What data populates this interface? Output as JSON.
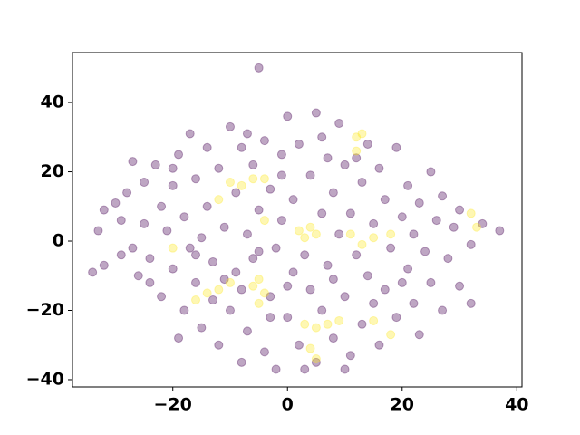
{
  "chart_data": {
    "type": "scatter",
    "xlim": [
      -37.5,
      40.9
    ],
    "ylim": [
      -42.1,
      54.4
    ],
    "xticks": [
      {
        "value": -20,
        "label": "−20"
      },
      0,
      20,
      40
    ],
    "yticks": [
      {
        "value": -40,
        "label": "−40"
      },
      {
        "value": -20,
        "label": "−20"
      },
      0,
      20,
      40
    ],
    "opacity": 0.35,
    "series": [
      {
        "color": "#440154",
        "x": [
          -34,
          -33,
          -32,
          -32,
          -30,
          -29,
          -28,
          -27,
          -27,
          -26,
          -25,
          -25,
          -24,
          -23,
          -22,
          -22,
          -21,
          -20,
          -20,
          -19,
          -19,
          -18,
          -18,
          -17,
          -17,
          -16,
          -16,
          -15,
          -15,
          -14,
          -14,
          -13,
          -12,
          -12,
          -11,
          -10,
          -10,
          -9,
          -9,
          -8,
          -8,
          -7,
          -7,
          -6,
          -6,
          -5,
          -5,
          -4,
          -4,
          -3,
          -3,
          -2,
          -2,
          -1,
          -1,
          0,
          0,
          1,
          1,
          2,
          2,
          3,
          4,
          4,
          5,
          5,
          6,
          6,
          7,
          7,
          8,
          8,
          9,
          9,
          10,
          10,
          11,
          11,
          12,
          13,
          13,
          14,
          14,
          15,
          16,
          16,
          17,
          17,
          18,
          19,
          19,
          20,
          21,
          21,
          22,
          22,
          23,
          23,
          24,
          25,
          25,
          26,
          27,
          27,
          28,
          29,
          30,
          30,
          32,
          32,
          34,
          37,
          -29,
          -24,
          -20,
          -13,
          -8,
          0,
          3,
          -5,
          -3,
          8,
          15,
          -11,
          -16,
          20,
          12,
          -1,
          6,
          -7,
          10
        ],
        "y": [
          -9,
          3,
          9,
          -7,
          11,
          6,
          14,
          23,
          -2,
          -10,
          17,
          5,
          -5,
          22,
          10,
          -16,
          3,
          16,
          -8,
          -28,
          25,
          7,
          -20,
          -2,
          31,
          18,
          -12,
          1,
          -25,
          27,
          10,
          -6,
          -30,
          21,
          4,
          -20,
          33,
          14,
          -9,
          -35,
          27,
          2,
          -26,
          22,
          -5,
          50,
          9,
          -32,
          29,
          -16,
          15,
          -2,
          -37,
          25,
          6,
          -22,
          36,
          12,
          -9,
          -30,
          28,
          -4,
          19,
          -14,
          37,
          -35,
          8,
          -20,
          24,
          -7,
          -28,
          14,
          34,
          2,
          -16,
          22,
          -33,
          8,
          -4,
          17,
          -24,
          -10,
          28,
          5,
          -30,
          21,
          -14,
          12,
          -2,
          -22,
          27,
          7,
          -8,
          16,
          -18,
          2,
          -27,
          11,
          -3,
          20,
          -12,
          6,
          -20,
          13,
          -5,
          4,
          -13,
          9,
          -1,
          -18,
          5,
          3,
          -4,
          -12,
          21,
          -17,
          -14,
          -13,
          -37,
          -3,
          -22,
          -11,
          -18,
          -11,
          -4,
          -12,
          24,
          19,
          30,
          31,
          -37
        ]
      },
      {
        "color": "#fde725",
        "x": [
          -12,
          -10,
          -8,
          -6,
          -4,
          2,
          3,
          4,
          5,
          11,
          13,
          15,
          -6,
          -5,
          -4,
          -5,
          -14,
          -12,
          -16,
          -10,
          3,
          5,
          7,
          9,
          4,
          5,
          12,
          13,
          12,
          18,
          33,
          32,
          -4,
          -20,
          15,
          18
        ],
        "y": [
          12,
          17,
          16,
          18,
          18,
          3,
          1,
          4,
          2,
          2,
          -1,
          1,
          -13,
          -11,
          -15,
          -18,
          -15,
          -14,
          -17,
          -12,
          -24,
          -25,
          -24,
          -23,
          -31,
          -34,
          30,
          31,
          26,
          2,
          4,
          8,
          6,
          -2,
          -23,
          -27
        ]
      }
    ]
  }
}
